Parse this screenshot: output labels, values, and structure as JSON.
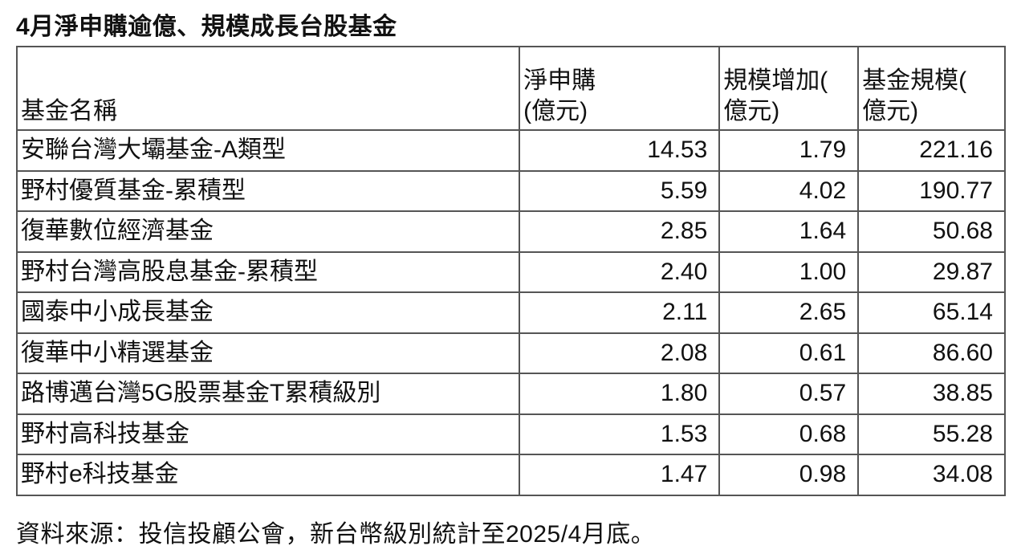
{
  "title": "4月淨申購逾億、規模成長台股基金",
  "table": {
    "headers": [
      {
        "lines": [
          "",
          "基金名稱"
        ]
      },
      {
        "lines": [
          "淨申購",
          "(億元)"
        ]
      },
      {
        "lines": [
          "規模增加(",
          "億元)"
        ]
      },
      {
        "lines": [
          "基金規模(",
          "億元)"
        ]
      }
    ],
    "rows": [
      [
        "安聯台灣大壩基金-A類型",
        "14.53",
        "1.79",
        "221.16"
      ],
      [
        "野村優質基金-累積型",
        "5.59",
        "4.02",
        "190.77"
      ],
      [
        "復華數位經濟基金",
        "2.85",
        "1.64",
        "50.68"
      ],
      [
        "野村台灣高股息基金-累積型",
        "2.40",
        "1.00",
        "29.87"
      ],
      [
        "國泰中小成長基金",
        "2.11",
        "2.65",
        "65.14"
      ],
      [
        "復華中小精選基金",
        "2.08",
        "0.61",
        "86.60"
      ],
      [
        "路博邁台灣5G股票基金T累積級別",
        "1.80",
        "0.57",
        "38.85"
      ],
      [
        "野村高科技基金",
        "1.53",
        "0.68",
        "55.28"
      ],
      [
        "野村e科技基金",
        "1.47",
        "0.98",
        "34.08"
      ]
    ]
  },
  "source": "資料來源：投信投顧公會，新台幣級別統計至2025/4月底。"
}
